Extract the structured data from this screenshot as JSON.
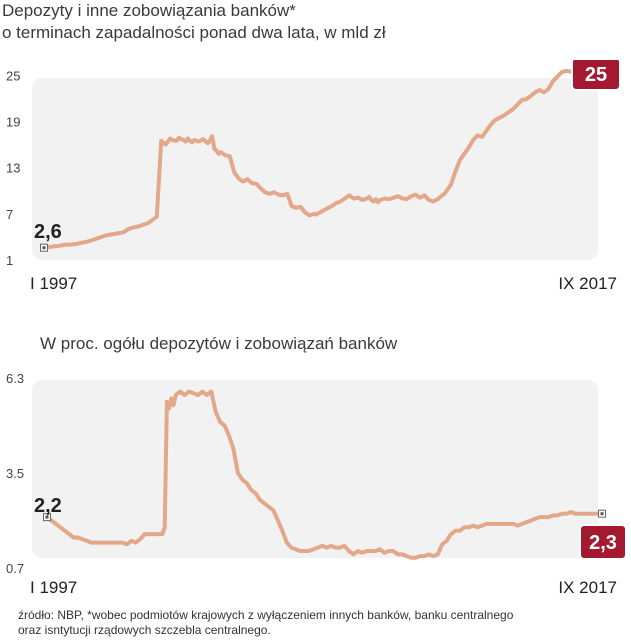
{
  "chart_data": [
    {
      "type": "line",
      "title": "Depozyty i inne zobowiązania banków*",
      "subtitle": "o terminach zapadalności ponad dwa lata, w mld zł",
      "x_start_label": "I 1997",
      "x_end_label": "IX 2017",
      "ylim": [
        1,
        27
      ],
      "y_ticks": [
        "1",
        "7",
        "13",
        "19",
        "25"
      ],
      "start_label": "2,6",
      "end_label": "25",
      "grid": false,
      "color": "#e3a78a",
      "accent": "#a3192f",
      "series": [
        {
          "x": [
            0,
            1,
            3,
            5,
            6,
            8,
            10,
            12,
            15,
            16,
            18,
            20,
            22,
            24,
            25,
            26,
            28,
            30,
            32,
            34,
            36,
            38,
            40,
            43,
            45,
            47,
            49,
            51,
            53,
            55,
            57,
            58,
            60,
            61,
            62,
            63,
            64,
            65,
            66,
            67,
            68,
            70,
            72,
            74,
            75,
            76,
            77,
            78,
            79,
            80,
            82,
            84,
            86,
            88,
            90,
            92,
            94,
            96,
            98,
            100,
            102,
            104,
            106,
            108,
            110,
            112,
            114,
            116,
            118,
            119,
            120,
            121,
            122,
            123,
            124,
            125,
            126,
            128,
            130,
            132,
            134,
            136,
            138,
            140,
            142,
            144,
            146,
            147,
            148,
            149,
            150,
            151,
            152,
            154,
            156,
            158,
            160,
            162,
            164,
            166,
            168,
            170,
            172,
            174,
            176,
            178,
            180,
            181,
            182,
            183,
            184,
            186,
            188,
            190,
            192,
            194,
            196,
            198,
            200,
            202,
            204,
            206,
            208,
            210,
            212,
            214,
            216,
            218,
            220,
            222,
            224,
            226,
            228,
            230,
            232,
            234,
            236,
            238,
            240,
            242,
            244,
            245,
            246,
            247,
            248,
            249,
            250
          ],
          "y": [
            2.6,
            2.7,
            2.7,
            2.8,
            2.8,
            2.9,
            3.0,
            3.0,
            3.1,
            3.2,
            3.3,
            3.4,
            3.6,
            3.8,
            3.9,
            4.0,
            4.2,
            4.3,
            4.4,
            4.5,
            4.6,
            5.0,
            5.2,
            5.4,
            5.6,
            5.8,
            6.2,
            6.6,
            16.5,
            16.0,
            16.8,
            16.6,
            16.5,
            16.9,
            16.7,
            16.6,
            16.4,
            16.8,
            16.5,
            16.3,
            16.6,
            16.4,
            16.7,
            16.2,
            16.5,
            17.1,
            15.5,
            15.2,
            14.8,
            15.0,
            14.6,
            14.5,
            12.4,
            11.6,
            11.2,
            11.5,
            11.0,
            10.9,
            10.3,
            9.8,
            9.6,
            9.8,
            9.5,
            9.4,
            9.6,
            8.0,
            7.8,
            7.9,
            7.2,
            7.0,
            6.8,
            6.9,
            7.0,
            6.9,
            7.1,
            7.2,
            7.4,
            7.7,
            8.0,
            8.4,
            8.6,
            9.0,
            9.4,
            9.0,
            9.1,
            8.8,
            9.0,
            9.2,
            8.8,
            8.6,
            8.9,
            8.5,
            8.8,
            9.0,
            8.9,
            9.1,
            9.3,
            9.0,
            8.9,
            9.3,
            9.5,
            9.1,
            9.4,
            8.8,
            8.6,
            8.9,
            9.4,
            9.6,
            10.0,
            10.4,
            10.8,
            12.5,
            14.0,
            14.8,
            15.6,
            16.6,
            17.2,
            17.0,
            17.8,
            18.6,
            19.2,
            19.5,
            19.8,
            20.2,
            20.6,
            21.2,
            21.8,
            21.9,
            22.3,
            22.8,
            23.1,
            22.8,
            23.2,
            24.2,
            24.8,
            25.4,
            25.6,
            25.5,
            25.4,
            25.3,
            25.2,
            25.0,
            25.1,
            25.0,
            25.0,
            25.0,
            25.0
          ]
        }
      ]
    },
    {
      "type": "line",
      "title": "W proc. ogółu depozytów i zobowiązań banków",
      "x_start_label": "I 1997",
      "x_end_label": "IX 2017",
      "ylim": [
        0.7,
        6.3
      ],
      "y_ticks": [
        "0.7",
        "3.5",
        "6.3"
      ],
      "start_label": "2,2",
      "end_label": "2,3",
      "grid": false,
      "color": "#e3a78a",
      "accent": "#a3192f",
      "series": [
        {
          "x": [
            0,
            2,
            4,
            6,
            8,
            10,
            12,
            14,
            16,
            18,
            20,
            22,
            24,
            26,
            28,
            30,
            32,
            34,
            36,
            38,
            40,
            42,
            44,
            46,
            48,
            50,
            52,
            53,
            54,
            55,
            56,
            57,
            58,
            60,
            62,
            64,
            66,
            68,
            70,
            72,
            74,
            76,
            78,
            80,
            82,
            84,
            86,
            88,
            90,
            92,
            94,
            96,
            98,
            100,
            102,
            104,
            106,
            108,
            110,
            112,
            114,
            116,
            118,
            120,
            122,
            124,
            126,
            128,
            130,
            132,
            134,
            136,
            138,
            140,
            142,
            144,
            146,
            148,
            150,
            152,
            154,
            156,
            158,
            160,
            162,
            164,
            166,
            168,
            170,
            172,
            174,
            176,
            178,
            180,
            182,
            184,
            186,
            188,
            190,
            192,
            194,
            196,
            198,
            200,
            202,
            204,
            206,
            208,
            210,
            212,
            214,
            216,
            218,
            220,
            222,
            224,
            226,
            228,
            230,
            232,
            234,
            236,
            238,
            240,
            242,
            244,
            246,
            248,
            250
          ],
          "y": [
            2.2,
            2.1,
            2.0,
            1.9,
            1.8,
            1.7,
            1.6,
            1.6,
            1.55,
            1.5,
            1.45,
            1.45,
            1.45,
            1.45,
            1.45,
            1.45,
            1.45,
            1.45,
            1.4,
            1.5,
            1.45,
            1.55,
            1.7,
            1.7,
            1.7,
            1.7,
            1.7,
            1.9,
            5.6,
            5.4,
            5.7,
            5.5,
            5.8,
            5.9,
            5.8,
            5.9,
            5.85,
            5.8,
            5.9,
            5.8,
            5.9,
            5.3,
            5.0,
            4.9,
            4.6,
            4.2,
            3.5,
            3.3,
            3.2,
            3.0,
            2.9,
            2.7,
            2.6,
            2.5,
            2.4,
            2.1,
            1.8,
            1.45,
            1.3,
            1.25,
            1.2,
            1.2,
            1.2,
            1.25,
            1.3,
            1.35,
            1.3,
            1.35,
            1.3,
            1.3,
            1.35,
            1.2,
            1.1,
            1.2,
            1.15,
            1.2,
            1.2,
            1.2,
            1.25,
            1.15,
            1.2,
            1.2,
            1.1,
            1.1,
            1.05,
            1.0,
            1.0,
            1.05,
            1.05,
            1.1,
            1.05,
            1.1,
            1.4,
            1.5,
            1.7,
            1.8,
            1.8,
            1.9,
            1.9,
            1.95,
            1.9,
            1.95,
            2.0,
            2.0,
            2.0,
            2.0,
            2.0,
            2.0,
            2.0,
            1.95,
            2.0,
            2.05,
            2.1,
            2.15,
            2.2,
            2.2,
            2.2,
            2.25,
            2.25,
            2.3,
            2.3,
            2.35,
            2.3,
            2.3,
            2.3,
            2.3,
            2.3,
            2.3,
            2.3
          ]
        }
      ]
    }
  ],
  "source": {
    "line1": "źródło: NBP, *wobec podmiotów krajowych z wyłączeniem innych banków, banku centralnego",
    "line2": "oraz isntytucji rządowych szczebla centralnego."
  }
}
